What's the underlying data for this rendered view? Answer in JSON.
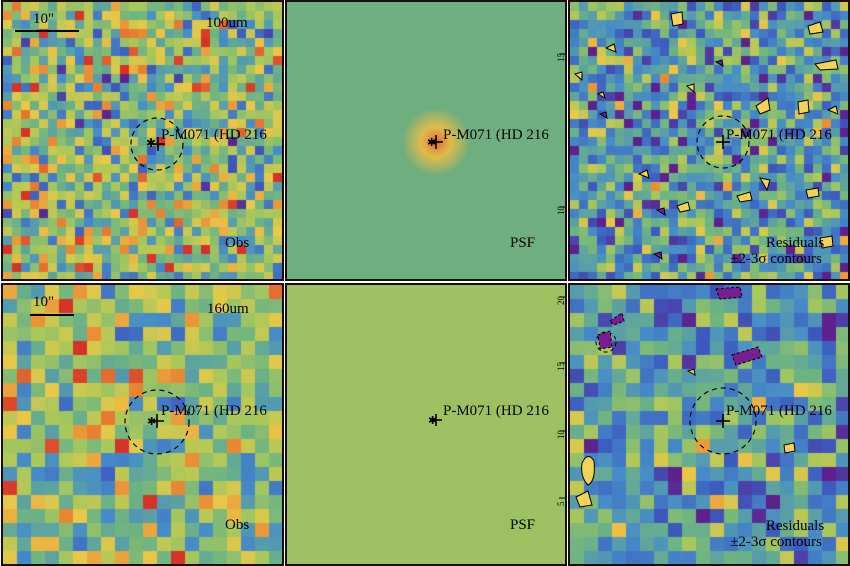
{
  "scale_label": "10\"",
  "rows": [
    {
      "band_label": "100um",
      "target_label": "P-M071 (HD 216",
      "panels": [
        {
          "kind": "observed",
          "caption": "Obs"
        },
        {
          "kind": "psf",
          "caption": "PSF"
        },
        {
          "kind": "residual",
          "caption_line1": "Residuals",
          "caption_line2": "±2-3σ contours"
        }
      ]
    },
    {
      "band_label": "160um",
      "target_label": "P-M071 (HD 216",
      "panels": [
        {
          "kind": "observed",
          "caption": "Obs"
        },
        {
          "kind": "psf",
          "caption": "PSF"
        },
        {
          "kind": "residual",
          "caption_line1": "Residuals",
          "caption_line2": "±2-3σ contours"
        }
      ]
    }
  ],
  "tick_labels": {
    "psf_top": [
      "15",
      "10"
    ],
    "psf_bottom": [
      "20",
      "15",
      "10",
      "5"
    ]
  },
  "colors": {
    "panel_border": "#1a0e0e",
    "psf_background_top": "#6fae7e",
    "psf_background_bottom": "#9dc160",
    "psf_core": "#e06a33"
  }
}
